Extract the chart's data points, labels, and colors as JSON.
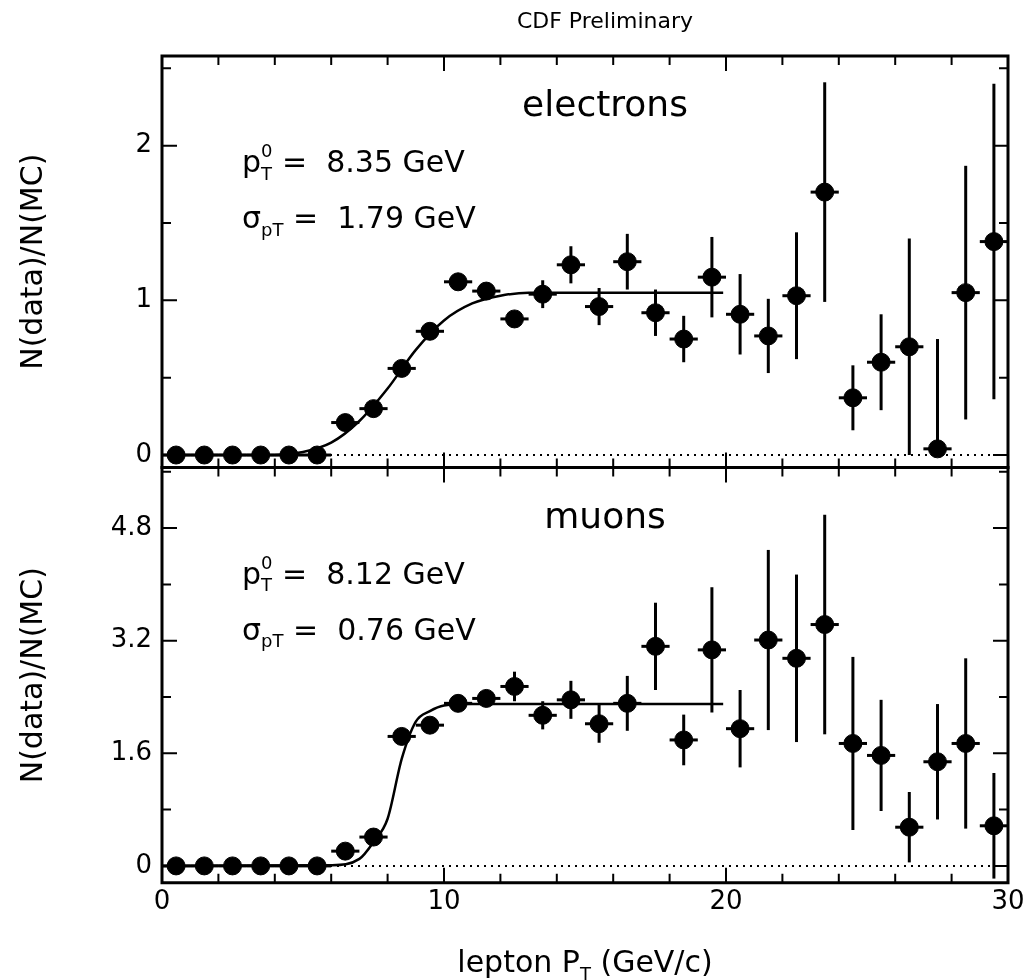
{
  "chart_data": [
    {
      "type": "scatter",
      "title": "CDF Preliminary",
      "ylabel": "N(data)/N(MC)",
      "xlim": [
        0,
        30
      ],
      "xticks": [
        0,
        {
          "value": 2,
          "label": null
        },
        {
          "value": 4,
          "label": null
        },
        {
          "value": 6,
          "label": null
        },
        {
          "value": 8,
          "label": null
        },
        10,
        {
          "value": 12,
          "label": null
        },
        {
          "value": 14,
          "label": null
        },
        {
          "value": 16,
          "label": null
        },
        {
          "value": 18,
          "label": null
        },
        20,
        {
          "value": 22,
          "label": null
        },
        {
          "value": 24,
          "label": null
        },
        {
          "value": 26,
          "label": null
        },
        {
          "value": 28,
          "label": null
        },
        30
      ],
      "ylim": [
        -0.08,
        2.58
      ],
      "yticks": [
        0,
        {
          "value": 0.5,
          "label": null
        },
        1,
        {
          "value": 1.5,
          "label": null
        },
        2,
        {
          "value": 2.5,
          "label": null
        }
      ],
      "tick_labels": "y",
      "grid": false,
      "series": [
        {
          "type": "scatter",
          "color": "#000000",
          "marker": "circle",
          "x": [
            0.5,
            1.5,
            2.5,
            3.5,
            4.5,
            5.5,
            6.5,
            7.5,
            8.5,
            9.5,
            10.5,
            11.5,
            12.5,
            13.5,
            14.5,
            15.5,
            16.5,
            17.5,
            18.5,
            19.5,
            20.5,
            21.5,
            22.5,
            23.5,
            24.5,
            25.5,
            26.5,
            27.5,
            28.5,
            29.5
          ],
          "values": [
            0,
            0,
            0,
            0,
            0,
            0,
            0.21,
            0.3,
            0.56,
            0.8,
            1.12,
            1.06,
            0.88,
            1.04,
            1.23,
            0.96,
            1.25,
            0.92,
            0.75,
            1.15,
            0.91,
            0.77,
            1.03,
            1.7,
            0.37,
            0.6,
            0.7,
            0.04,
            1.05,
            1.38
          ],
          "errors": [
            null,
            null,
            null,
            null,
            null,
            null,
            null,
            null,
            null,
            null,
            null,
            null,
            null,
            0.09,
            0.12,
            0.12,
            0.18,
            0.15,
            0.15,
            0.26,
            0.26,
            0.24,
            0.41,
            0.71,
            0.21,
            0.31,
            0.7,
            [
              0,
              0.75
            ],
            0.82,
            1.02
          ],
          "xerrors": [
            0.5,
            0.5,
            0.5,
            0.5,
            0.5,
            0.5,
            0.5,
            0.5,
            0.5,
            0.5,
            0.5,
            0.5,
            0.5,
            0.5,
            0.5,
            0.5,
            0.5,
            0.5,
            0.5,
            0.5,
            0.5,
            0.5,
            0.5,
            0.5,
            0.5,
            0.5,
            0.5,
            0.5,
            0.5,
            0.5
          ]
        },
        {
          "type": "line",
          "color": "#000000",
          "marker": "none",
          "x": [
            0,
            4,
            5,
            6,
            7,
            8,
            9,
            10,
            11,
            12,
            13,
            19.9
          ],
          "values": [
            0,
            0,
            0.02,
            0.08,
            0.22,
            0.43,
            0.68,
            0.87,
            0.98,
            1.03,
            1.05,
            1.05
          ]
        }
      ],
      "ref_lines": [
        {
          "axis": "y",
          "value": 0,
          "line_style": "dotted",
          "color": "#000000"
        }
      ],
      "annotations": [
        "electrons",
        "p$_{T}$$^{0}$ =  8.35 GeV",
        "σ$_{pT}$ =  1.79 GeV"
      ]
    },
    {
      "type": "scatter",
      "ylabel": "N(data)/N(MC)",
      "xlabel": "lepton P$_{T}$ (GeV/c)",
      "xlim": [
        0,
        30
      ],
      "xticks": [
        0,
        {
          "value": 2,
          "label": null
        },
        {
          "value": 4,
          "label": null
        },
        {
          "value": 6,
          "label": null
        },
        {
          "value": 8,
          "label": null
        },
        10,
        {
          "value": 12,
          "label": null
        },
        {
          "value": 14,
          "label": null
        },
        {
          "value": 16,
          "label": null
        },
        {
          "value": 18,
          "label": null
        },
        20,
        {
          "value": 22,
          "label": null
        },
        {
          "value": 24,
          "label": null
        },
        {
          "value": 26,
          "label": null
        },
        {
          "value": 28,
          "label": null
        },
        30
      ],
      "ylim": [
        -0.24,
        5.66
      ],
      "yticks": [
        0,
        {
          "value": 0.8,
          "label": null
        },
        1.6,
        {
          "value": 2.4,
          "label": null
        },
        3.2,
        {
          "value": 4.0,
          "label": null
        },
        4.8,
        {
          "value": 5.6,
          "label": null
        }
      ],
      "grid": false,
      "series": [
        {
          "type": "scatter",
          "color": "#000000",
          "marker": "circle",
          "x": [
            0.5,
            1.5,
            2.5,
            3.5,
            4.5,
            5.5,
            6.5,
            7.5,
            8.5,
            9.5,
            10.5,
            11.5,
            12.5,
            13.5,
            14.5,
            15.5,
            16.5,
            17.5,
            18.5,
            19.5,
            20.5,
            21.5,
            22.5,
            23.5,
            24.5,
            25.5,
            26.5,
            27.5,
            28.5,
            29.5
          ],
          "values": [
            0,
            0,
            0,
            0,
            0,
            0,
            0.21,
            0.41,
            1.84,
            2.0,
            2.31,
            2.38,
            2.55,
            2.14,
            2.36,
            2.02,
            2.31,
            3.12,
            1.79,
            3.07,
            1.95,
            3.21,
            2.95,
            3.43,
            1.74,
            1.57,
            0.55,
            1.48,
            1.74,
            0.57
          ],
          "errors": [
            null,
            null,
            null,
            null,
            null,
            null,
            null,
            null,
            null,
            null,
            null,
            0.1,
            0.21,
            0.2,
            0.27,
            0.27,
            0.39,
            0.62,
            0.36,
            0.89,
            0.55,
            1.28,
            1.19,
            1.56,
            1.23,
            0.79,
            0.5,
            0.82,
            1.21,
            0.75
          ],
          "xerrors": [
            0.5,
            0.5,
            0.5,
            0.5,
            0.5,
            0.5,
            0.5,
            0.5,
            0.5,
            0.5,
            0.5,
            0.5,
            0.5,
            0.5,
            0.5,
            0.5,
            0.5,
            0.5,
            0.5,
            0.5,
            0.5,
            0.5,
            0.5,
            0.5,
            0.5,
            0.5,
            0.5,
            0.5,
            0.5,
            0.5
          ]
        },
        {
          "type": "line",
          "color": "#000000",
          "marker": "none",
          "x": [
            0,
            6,
            7,
            7.5,
            8,
            8.5,
            9,
            9.5,
            10,
            11,
            19.9
          ],
          "values": [
            0,
            0.01,
            0.1,
            0.34,
            0.67,
            1.52,
            2.05,
            2.2,
            2.28,
            2.3,
            2.3
          ]
        }
      ],
      "ref_lines": [
        {
          "axis": "y",
          "value": 0,
          "line_style": "dotted",
          "color": "#000000"
        }
      ],
      "annotations": [
        "muons",
        "p$_{T}$$^{0}$ =  8.12 GeV",
        "σ$_{pT}$ =  0.76 GeV"
      ]
    }
  ]
}
